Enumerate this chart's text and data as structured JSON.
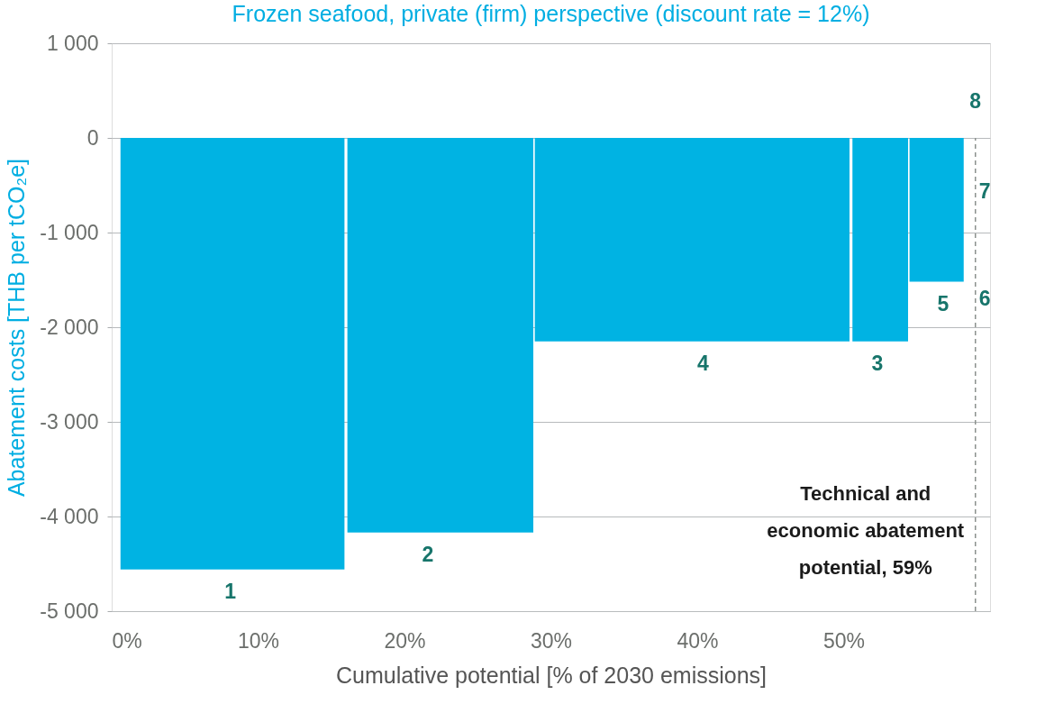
{
  "chart_data": {
    "type": "area",
    "title": "Frozen seafood, private (firm) perspective (discount rate = 12%)",
    "xlabel": "Cumulative potential [% of 2030 emissions]",
    "ylabel": "Abatement costs [THB per tCO₂e]",
    "series": [
      {
        "color": "#00b3e3",
        "x": [
          0.6,
          15.9
        ],
        "values": [
          -4560,
          -4560
        ]
      },
      {
        "color": "#00b3e3",
        "x": [
          16.1,
          28.8
        ],
        "values": [
          -4170,
          -4170
        ]
      },
      {
        "color": "#00b3e3",
        "x": [
          28.9,
          50.4
        ],
        "values": [
          -2150,
          -2150
        ]
      },
      {
        "color": "#00b3e3",
        "x": [
          50.6,
          54.4
        ],
        "values": [
          -2150,
          -2150
        ]
      },
      {
        "color": "#00b3e3",
        "x": [
          54.5,
          58.2
        ],
        "values": [
          -1520,
          -1520
        ]
      }
    ],
    "xlim": [
      0,
      60
    ],
    "xticks": [
      {
        "value": 0,
        "label": "0%"
      },
      {
        "value": 10,
        "label": "10%"
      },
      {
        "value": 20,
        "label": "20%"
      },
      {
        "value": 30,
        "label": "30%"
      },
      {
        "value": 40,
        "label": "40%"
      },
      {
        "value": 50,
        "label": "50%"
      }
    ],
    "ylim": [
      -5000,
      1000
    ],
    "yticks": [
      {
        "value": 1000,
        "label": "1 000"
      },
      0,
      {
        "value": -1000,
        "label": "-1 000"
      },
      {
        "value": -2000,
        "label": "-2 000"
      },
      {
        "value": -3000,
        "label": "-3 000"
      },
      {
        "value": -4000,
        "label": "-4 000"
      },
      {
        "value": -5000,
        "label": "-5 000"
      }
    ],
    "grid": "y",
    "annotations": [
      {
        "text": "1",
        "x": 8.1,
        "y": -4560
      },
      {
        "text": "2",
        "x": 21.6,
        "y": -4170
      },
      {
        "text": "4",
        "x": 40.4,
        "y": -2150
      },
      {
        "text": "3",
        "x": 52.3,
        "y": -2150
      },
      {
        "text": "5",
        "x": 56.8,
        "y": -1520
      },
      {
        "text": "6",
        "x": 59,
        "y": -1700
      },
      {
        "text": "7",
        "x": 59,
        "y": -570
      },
      {
        "text": "8",
        "x": 59,
        "y": 0
      }
    ],
    "ref_lines": [
      {
        "axis": "x",
        "value": 59,
        "label": "Technical and\neconomic abatement\npotential, 59%",
        "line_style": "dashed",
        "color": "#8c918e"
      }
    ]
  }
}
